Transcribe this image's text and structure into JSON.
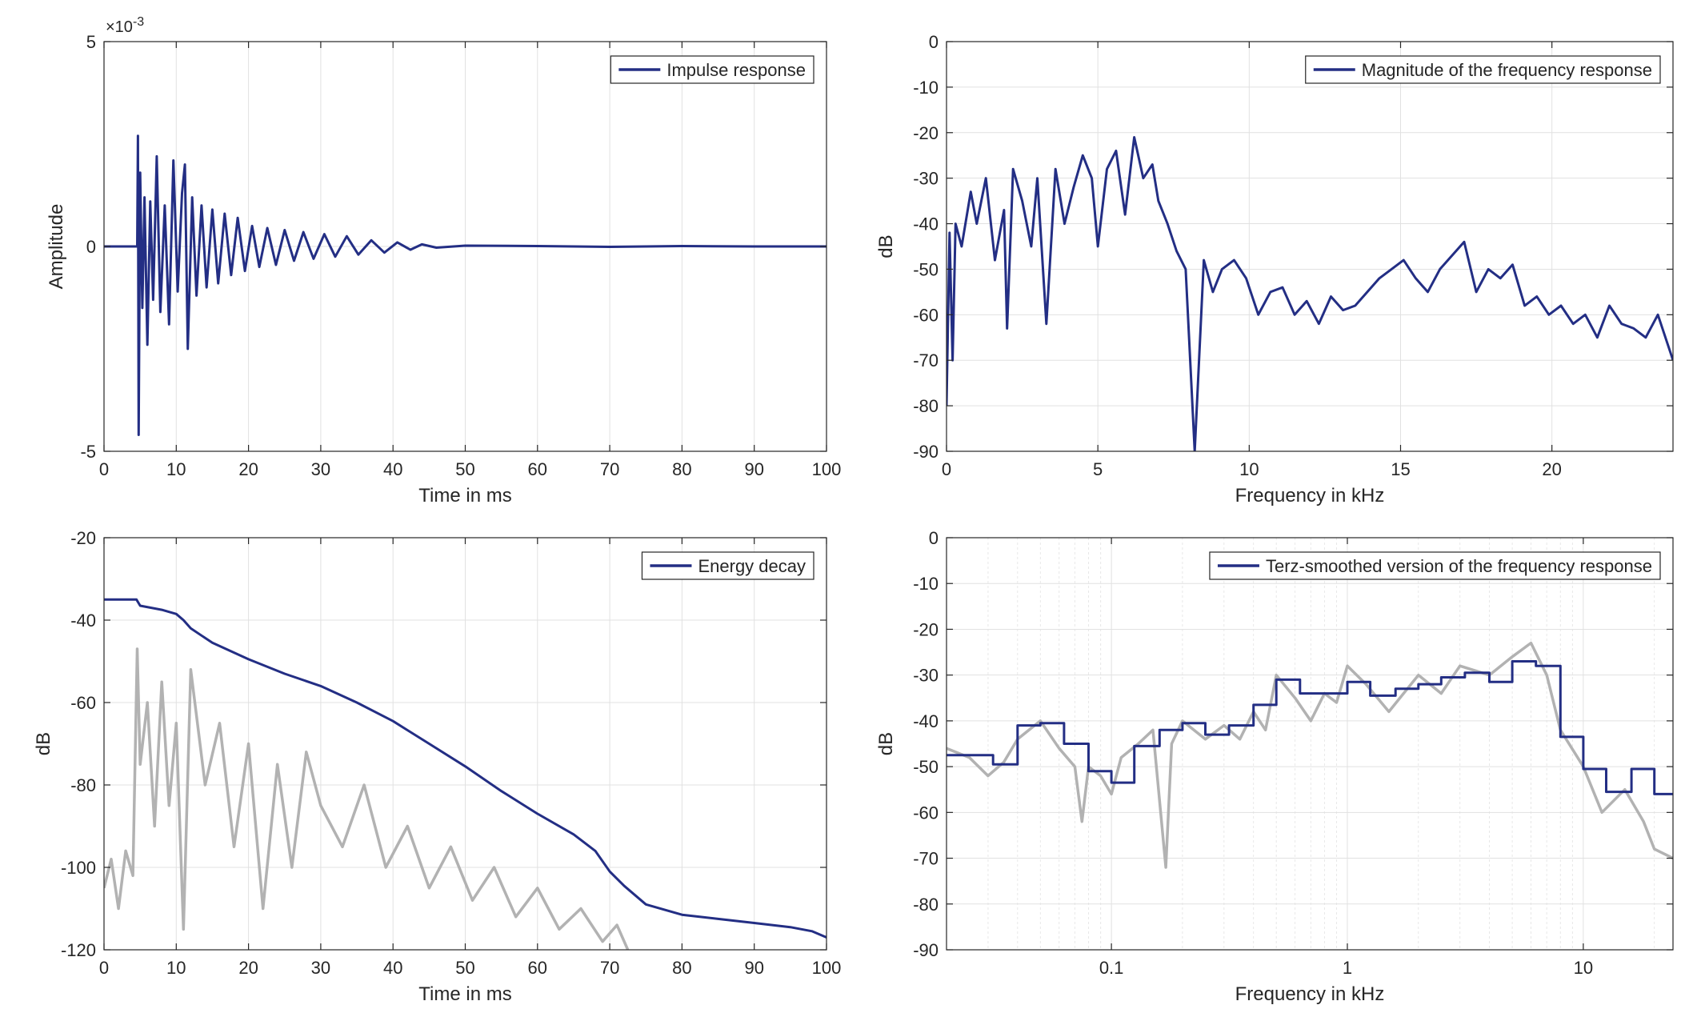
{
  "figure": {
    "colors": {
      "series_main": "#232e84",
      "series_gray": "#b2b2b2",
      "grid": "#e1e1e1",
      "axis": "#262626"
    }
  },
  "chart_data": [
    {
      "type": "line",
      "panel": "top-left",
      "xlabel": "Time in ms",
      "ylabel": "Amplitude",
      "xlim": [
        0,
        100
      ],
      "ylim": [
        -5,
        5
      ],
      "y_exponent_label": "×10",
      "y_exponent_power": "-3",
      "xticks": [
        0,
        10,
        20,
        30,
        40,
        50,
        60,
        70,
        80,
        90,
        100
      ],
      "yticks": [
        -5,
        0,
        5
      ],
      "grid": true,
      "legend_position": "top-right",
      "legend": [
        "Impulse response"
      ],
      "series": [
        {
          "name": "Impulse response",
          "color": "#232e84",
          "x": [
            0,
            4.6,
            4.7,
            4.8,
            5.0,
            5.3,
            5.6,
            6.0,
            6.4,
            6.8,
            7.3,
            7.8,
            8.4,
            9.0,
            9.6,
            10.2,
            10.8,
            11.2,
            11.6,
            12.2,
            12.8,
            13.5,
            14.2,
            15.0,
            15.8,
            16.7,
            17.6,
            18.5,
            19.5,
            20.5,
            21.5,
            22.6,
            23.8,
            25.0,
            26.3,
            27.6,
            29.0,
            30.5,
            32.0,
            33.6,
            35.2,
            37.0,
            38.8,
            40.6,
            42.4,
            44.0,
            46.0,
            50.0,
            60.0,
            70.0,
            80.0,
            90.0,
            100.0
          ],
          "y": [
            0,
            0,
            2.7,
            -4.6,
            1.8,
            -1.5,
            1.2,
            -2.4,
            1.1,
            -1.3,
            2.2,
            -1.6,
            1.0,
            -1.9,
            2.1,
            -1.1,
            1.3,
            2.0,
            -2.5,
            1.2,
            -1.2,
            1.0,
            -1.0,
            0.9,
            -0.9,
            0.8,
            -0.7,
            0.7,
            -0.6,
            0.5,
            -0.5,
            0.45,
            -0.45,
            0.4,
            -0.35,
            0.35,
            -0.3,
            0.3,
            -0.25,
            0.25,
            -0.2,
            0.15,
            -0.15,
            0.1,
            -0.08,
            0.05,
            -0.03,
            0.02,
            0.01,
            -0.01,
            0.01,
            0.0,
            0.0
          ]
        }
      ]
    },
    {
      "type": "line",
      "panel": "top-right",
      "xlabel": "Frequency in kHz",
      "ylabel": "dB",
      "xlim": [
        0,
        24
      ],
      "ylim": [
        -90,
        0
      ],
      "xticks": [
        0,
        5,
        10,
        15,
        20
      ],
      "yticks": [
        0,
        -10,
        -20,
        -30,
        -40,
        -50,
        -60,
        -70,
        -80,
        -90
      ],
      "grid": true,
      "legend_position": "top-right",
      "legend": [
        "Magnitude of the frequency response"
      ],
      "series": [
        {
          "name": "Magnitude of the frequency response",
          "color": "#232e84",
          "x": [
            0,
            0.1,
            0.2,
            0.3,
            0.5,
            0.8,
            1.0,
            1.3,
            1.6,
            1.9,
            2.0,
            2.2,
            2.5,
            2.8,
            3.0,
            3.3,
            3.6,
            3.9,
            4.2,
            4.5,
            4.8,
            5.0,
            5.3,
            5.6,
            5.9,
            6.2,
            6.5,
            6.8,
            7.0,
            7.3,
            7.6,
            7.9,
            8.2,
            8.5,
            8.8,
            9.1,
            9.5,
            9.9,
            10.3,
            10.7,
            11.1,
            11.5,
            11.9,
            12.3,
            12.7,
            13.1,
            13.5,
            13.9,
            14.3,
            14.7,
            15.1,
            15.5,
            15.9,
            16.3,
            16.7,
            17.1,
            17.5,
            17.9,
            18.3,
            18.7,
            19.1,
            19.5,
            19.9,
            20.3,
            20.7,
            21.1,
            21.5,
            21.9,
            22.3,
            22.7,
            23.1,
            23.5,
            24.0
          ],
          "y": [
            -80,
            -42,
            -70,
            -40,
            -45,
            -33,
            -40,
            -30,
            -48,
            -37,
            -63,
            -28,
            -35,
            -45,
            -30,
            -62,
            -28,
            -40,
            -32,
            -25,
            -30,
            -45,
            -28,
            -24,
            -38,
            -21,
            -30,
            -27,
            -35,
            -40,
            -46,
            -50,
            -90,
            -48,
            -55,
            -50,
            -48,
            -52,
            -60,
            -55,
            -54,
            -60,
            -57,
            -62,
            -56,
            -59,
            -58,
            -55,
            -52,
            -50,
            -48,
            -52,
            -55,
            -50,
            -47,
            -44,
            -55,
            -50,
            -52,
            -49,
            -58,
            -56,
            -60,
            -58,
            -62,
            -60,
            -65,
            -58,
            -62,
            -63,
            -65,
            -60,
            -70
          ]
        }
      ]
    },
    {
      "type": "line",
      "panel": "bottom-left",
      "xlabel": "Time in ms",
      "ylabel": "dB",
      "xlim": [
        0,
        100
      ],
      "ylim": [
        -120,
        -20
      ],
      "xticks": [
        0,
        10,
        20,
        30,
        40,
        50,
        60,
        70,
        80,
        90,
        100
      ],
      "yticks": [
        -20,
        -40,
        -60,
        -80,
        -100,
        -120
      ],
      "grid": true,
      "legend_position": "top-right",
      "legend": [
        "Energy decay"
      ],
      "series": [
        {
          "name": "Energy decay",
          "color": "#232e84",
          "x": [
            0,
            4.5,
            5.0,
            8.0,
            10.0,
            11.0,
            12.0,
            15.0,
            20.0,
            25.0,
            30.0,
            35.0,
            40.0,
            45.0,
            50.0,
            55.0,
            60.0,
            65.0,
            68.0,
            70.0,
            72.0,
            75.0,
            80.0,
            85.0,
            90.0,
            95.0,
            98.0,
            100.0
          ],
          "y": [
            -35,
            -35,
            -36.5,
            -37.5,
            -38.5,
            -40.0,
            -42.0,
            -45.5,
            -49.5,
            -53.0,
            -56.0,
            -60.0,
            -64.5,
            -70.0,
            -75.5,
            -81.5,
            -87.0,
            -92.0,
            -96.0,
            -101.0,
            -104.5,
            -109.0,
            -111.5,
            -112.5,
            -113.5,
            -114.5,
            -115.5,
            -117.0
          ]
        },
        {
          "color": "#b2b2b2",
          "x": [
            0,
            1,
            2,
            3,
            4,
            4.6,
            5,
            6,
            7,
            8,
            9,
            10,
            11,
            12,
            14,
            16,
            18,
            20,
            22,
            24,
            26,
            28,
            30,
            33,
            36,
            39,
            42,
            45,
            48,
            51,
            54,
            57,
            60,
            63,
            66,
            69,
            71,
            72.5
          ],
          "y": [
            -105,
            -98,
            -110,
            -96,
            -102,
            -47,
            -75,
            -60,
            -90,
            -55,
            -85,
            -65,
            -115,
            -52,
            -80,
            -65,
            -95,
            -70,
            -110,
            -75,
            -100,
            -72,
            -85,
            -95,
            -80,
            -100,
            -90,
            -105,
            -95,
            -108,
            -100,
            -112,
            -105,
            -115,
            -110,
            -118,
            -114,
            -120
          ]
        }
      ]
    },
    {
      "type": "line",
      "panel": "bottom-right",
      "xlabel": "Frequency in kHz",
      "ylabel": "dB",
      "xscale": "log",
      "xlim": [
        0.02,
        24
      ],
      "ylim": [
        -90,
        0
      ],
      "xticks": [
        0.1,
        1,
        10
      ],
      "xtick_labels": [
        "0.1",
        "1",
        "10"
      ],
      "yticks": [
        0,
        -10,
        -20,
        -30,
        -40,
        -50,
        -60,
        -70,
        -80,
        -90
      ],
      "grid": true,
      "legend_position": "top-right",
      "legend": [
        "Terz-smoothed version of the frequency response"
      ],
      "series": [
        {
          "name": "Terz-smoothed version of the frequency response",
          "color": "#232e84",
          "step": true,
          "x": [
            0.02,
            0.0315,
            0.04,
            0.05,
            0.063,
            0.08,
            0.1,
            0.125,
            0.16,
            0.2,
            0.25,
            0.315,
            0.4,
            0.5,
            0.63,
            0.8,
            1.0,
            1.25,
            1.6,
            2.0,
            2.5,
            3.15,
            4.0,
            5.0,
            6.3,
            8.0,
            10.0,
            12.5,
            16.0,
            20.0,
            24.0
          ],
          "y": [
            -47.5,
            -49.5,
            -41,
            -40.5,
            -45,
            -51,
            -53.5,
            -45.5,
            -42,
            -40.5,
            -43,
            -41,
            -36.5,
            -31,
            -34,
            -34,
            -31.5,
            -34.5,
            -33,
            -32,
            -30.5,
            -29.5,
            -31.5,
            -27,
            -28,
            -43.5,
            -50.5,
            -55.5,
            -50.5,
            -56,
            -56
          ]
        },
        {
          "color": "#b2b2b2",
          "x": [
            0.02,
            0.025,
            0.03,
            0.035,
            0.04,
            0.05,
            0.06,
            0.07,
            0.075,
            0.08,
            0.09,
            0.1,
            0.11,
            0.13,
            0.15,
            0.17,
            0.18,
            0.2,
            0.25,
            0.3,
            0.35,
            0.4,
            0.45,
            0.5,
            0.6,
            0.7,
            0.8,
            0.9,
            1.0,
            1.2,
            1.5,
            2.0,
            2.5,
            3.0,
            4.0,
            5.0,
            6.0,
            7.0,
            8.0,
            10.0,
            12.0,
            15.0,
            18.0,
            20.0,
            24.0
          ],
          "y": [
            -46,
            -48,
            -52,
            -49,
            -44,
            -40,
            -46,
            -50,
            -62,
            -50,
            -52,
            -56,
            -48,
            -45,
            -42,
            -72,
            -45,
            -40,
            -44,
            -41,
            -44,
            -38,
            -42,
            -30,
            -35,
            -40,
            -34,
            -36,
            -28,
            -32,
            -38,
            -30,
            -34,
            -28,
            -30,
            -26,
            -23,
            -30,
            -42,
            -50,
            -60,
            -55,
            -62,
            -68,
            -70
          ]
        }
      ]
    }
  ]
}
